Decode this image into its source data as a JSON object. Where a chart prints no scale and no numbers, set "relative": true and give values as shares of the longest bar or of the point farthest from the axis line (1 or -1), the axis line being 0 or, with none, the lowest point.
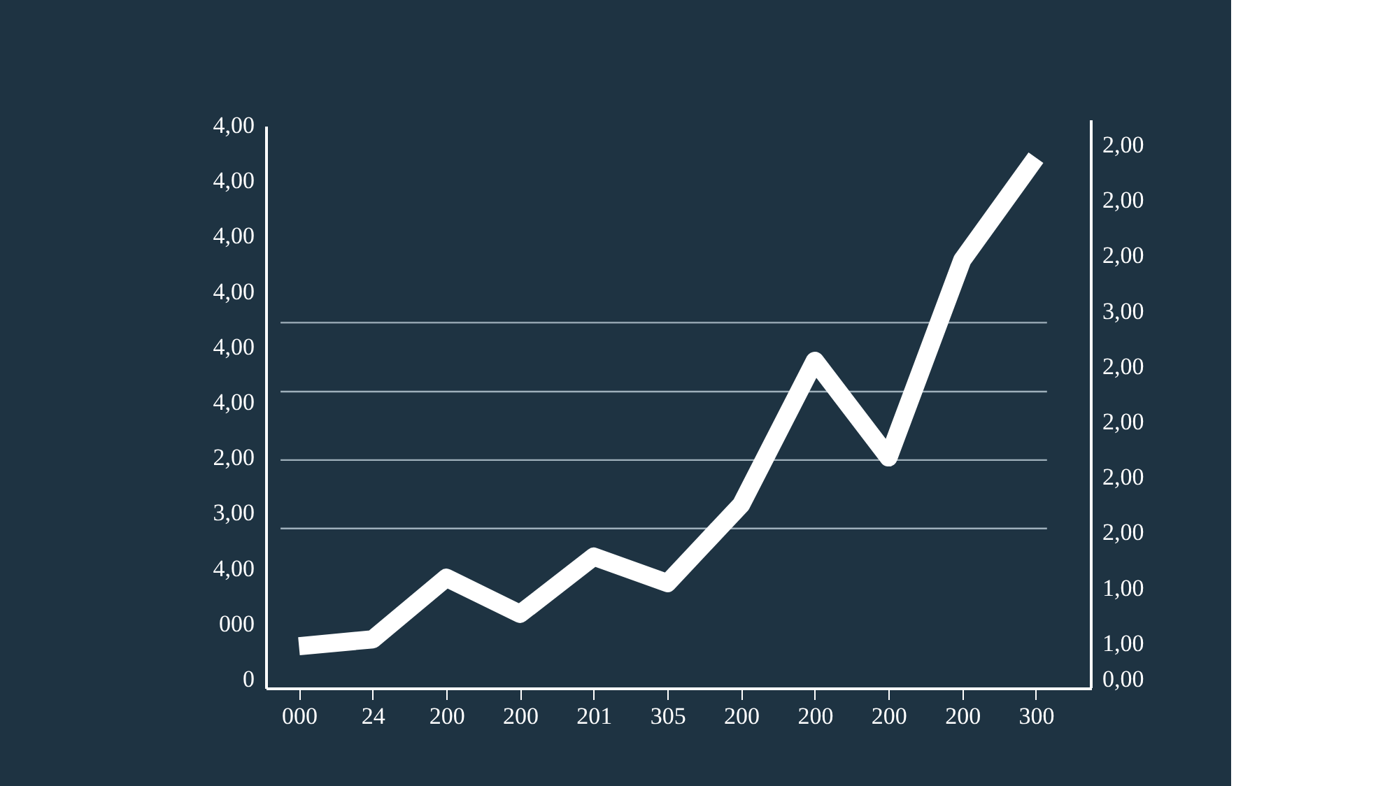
{
  "chart_data": {
    "type": "line",
    "relative": true,
    "categories": [
      "000",
      "24",
      "200",
      "200",
      "201",
      "305",
      "200",
      "200",
      "200",
      "200",
      "300"
    ],
    "series": [
      {
        "color": "#ffffff",
        "values": [
          0.079,
          0.092,
          0.208,
          0.14,
          0.248,
          0.198,
          0.346,
          0.617,
          0.435,
          0.807,
          1.0
        ]
      }
    ],
    "annotations": [
      "4,00",
      "4,00",
      "4,00",
      "4,00",
      "4,00",
      "4,00",
      "2,00",
      "3,00",
      "4,00",
      "000",
      "0",
      "2,00",
      "2,00",
      "2,00",
      "3,00",
      "2,00",
      "2,00",
      "2,00",
      "2,00",
      "1,00",
      "1,00",
      "0,00"
    ],
    "ref_lines": [
      {
        "axis": "y",
        "value": 0.301,
        "color": "#9fb0bb"
      },
      {
        "axis": "y",
        "value": 0.43,
        "color": "#9fb0bb"
      },
      {
        "axis": "y",
        "value": 0.559,
        "color": "#9fb0bb"
      },
      {
        "axis": "y",
        "value": 0.689,
        "color": "#9fb0bb"
      }
    ],
    "marker": "none",
    "line_style": "solid"
  }
}
